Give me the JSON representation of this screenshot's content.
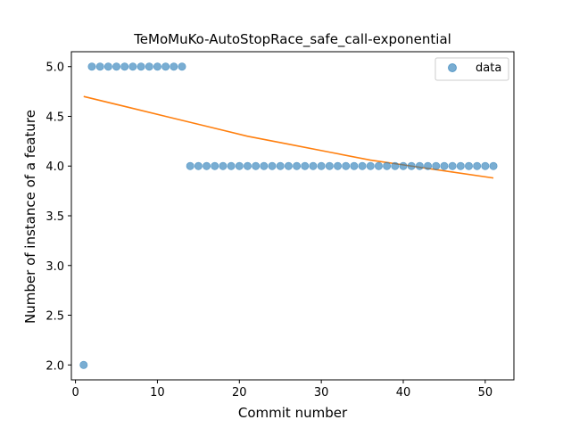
{
  "chart_data": {
    "type": "scatter",
    "title": "TeMoMuKo-AutoStopRace_safe_call-exponential",
    "xlabel": "Commit number",
    "ylabel": "Number of instance of a feature",
    "xlim": [
      -0.5,
      53.5
    ],
    "ylim": [
      1.85,
      5.15
    ],
    "x_ticks": [
      0,
      10,
      20,
      30,
      40,
      50
    ],
    "x_tick_labels": [
      "0",
      "10",
      "20",
      "30",
      "40",
      "50"
    ],
    "y_ticks": [
      2.0,
      2.5,
      3.0,
      3.5,
      4.0,
      4.5,
      5.0
    ],
    "y_tick_labels": [
      "2.0",
      "2.5",
      "3.0",
      "3.5",
      "4.0",
      "4.5",
      "5.0"
    ],
    "grid": false,
    "legend": {
      "position": "top-right",
      "entries": [
        "data"
      ]
    },
    "colors": {
      "data": "#1f77b4",
      "fit": "#ff7f0e"
    },
    "series": [
      {
        "name": "data",
        "kind": "scatter",
        "x": [
          1,
          2,
          3,
          4,
          5,
          6,
          7,
          8,
          9,
          10,
          11,
          12,
          13,
          14,
          15,
          16,
          17,
          18,
          19,
          20,
          21,
          22,
          23,
          24,
          25,
          26,
          27,
          28,
          29,
          30,
          31,
          32,
          33,
          34,
          35,
          36,
          37,
          38,
          39,
          40,
          41,
          42,
          43,
          44,
          45,
          46,
          47,
          48,
          49,
          50,
          51
        ],
        "y": [
          2,
          5,
          5,
          5,
          5,
          5,
          5,
          5,
          5,
          5,
          5,
          5,
          5,
          4,
          4,
          4,
          4,
          4,
          4,
          4,
          4,
          4,
          4,
          4,
          4,
          4,
          4,
          4,
          4,
          4,
          4,
          4,
          4,
          4,
          4,
          4,
          4,
          4,
          4,
          4,
          4,
          4,
          4,
          4,
          4,
          4,
          4,
          4,
          4,
          4,
          4
        ]
      },
      {
        "kind": "line",
        "x": [
          1,
          6,
          11,
          16,
          21,
          26,
          31,
          36,
          41,
          46,
          51
        ],
        "y": [
          4.7,
          4.6,
          4.5,
          4.4,
          4.3,
          4.22,
          4.14,
          4.06,
          4.0,
          3.94,
          3.88
        ]
      }
    ]
  }
}
